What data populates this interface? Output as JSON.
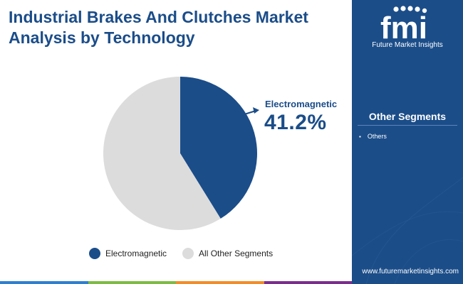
{
  "title": "Industrial Brakes And Clutches Market Analysis by Technology",
  "chart_data": {
    "type": "pie",
    "categories": [
      "Electromagnetic",
      "All Other Segments"
    ],
    "values": [
      41.2,
      58.8
    ],
    "colors": [
      "#1b4d89",
      "#dcdcdc"
    ],
    "legend": "bottom",
    "start_angle_deg": 0,
    "direction": "clockwise"
  },
  "callout": {
    "label": "Electromagnetic",
    "value": "41.2%"
  },
  "legend": {
    "items": [
      {
        "label": "Electromagnetic",
        "color": "#1b4d89"
      },
      {
        "label": "All Other Segments",
        "color": "#dcdcdc"
      }
    ]
  },
  "sidebar": {
    "logo_text": "fmi",
    "logo_subtitle": "Future Market Insights",
    "heading": "Other Segments",
    "items": [
      "Others"
    ],
    "url": "www.futuremarketinsights.com",
    "background_color": "#1b4d89"
  },
  "bottom_bar_colors": [
    "#2e7fce",
    "#7dbb42",
    "#f28c28",
    "#7b2d8e"
  ]
}
